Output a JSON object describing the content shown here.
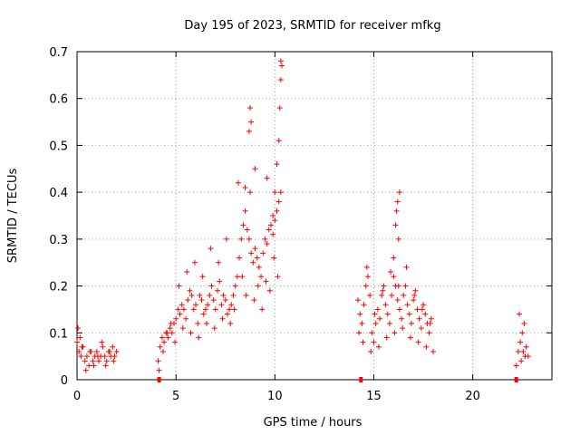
{
  "chart_data": {
    "type": "scatter",
    "title": "Day 195 of 2023, SRMTID for receiver mfkg",
    "xlabel": "GPS time / hours",
    "ylabel": "SRMTID / TECUs",
    "xlim": [
      0,
      24
    ],
    "ylim": [
      0,
      0.7
    ],
    "x_ticks": [
      0,
      5,
      10,
      15,
      20
    ],
    "x_tick_labels": [
      "0",
      "5",
      "10",
      "15",
      "20"
    ],
    "y_ticks": [
      0,
      0.1,
      0.2,
      0.3,
      0.4,
      0.5,
      0.6,
      0.7
    ],
    "y_tick_labels": [
      "0",
      "0.1",
      "0.2",
      "0.3",
      "0.4",
      "0.5",
      "0.6",
      "0.7"
    ],
    "grid": true,
    "marker": "+",
    "color": "#ff0000",
    "series": [
      {
        "name": "SRMTID",
        "x": [
          0.0,
          0.1,
          0.2,
          0.3,
          0.4,
          0.5,
          0.6,
          0.7,
          0.8,
          0.9,
          1.0,
          1.1,
          1.2,
          1.3,
          1.4,
          1.5,
          1.6,
          1.7,
          1.8,
          1.9,
          2.0,
          0.05,
          0.15,
          0.25,
          0.45,
          0.65,
          0.85,
          1.05,
          1.25,
          1.45,
          1.65,
          1.85,
          4.1,
          4.2,
          4.3,
          4.4,
          4.5,
          4.6,
          4.7,
          4.8,
          4.9,
          5.0,
          5.1,
          5.2,
          5.3,
          5.4,
          5.5,
          5.6,
          5.7,
          5.8,
          5.9,
          6.0,
          6.1,
          6.2,
          6.3,
          6.4,
          6.5,
          6.6,
          6.7,
          6.8,
          6.9,
          7.0,
          7.1,
          7.2,
          7.3,
          7.4,
          7.5,
          7.6,
          7.7,
          7.8,
          7.9,
          8.0,
          8.1,
          8.2,
          8.3,
          8.4,
          8.5,
          8.6,
          8.7,
          8.8,
          8.9,
          9.0,
          9.1,
          9.2,
          9.3,
          9.4,
          9.5,
          9.6,
          9.7,
          9.8,
          9.9,
          10.0,
          10.1,
          10.2,
          10.3,
          4.15,
          4.35,
          4.55,
          4.75,
          4.95,
          5.15,
          5.35,
          5.55,
          5.75,
          5.95,
          6.15,
          6.35,
          6.55,
          6.75,
          6.95,
          7.15,
          7.35,
          7.55,
          7.75,
          7.95,
          8.15,
          8.35,
          8.55,
          8.75,
          8.95,
          9.15,
          9.35,
          9.55,
          9.75,
          9.95,
          10.15,
          8.5,
          8.7,
          8.75,
          8.8,
          9.0,
          9.6,
          9.9,
          10.0,
          10.1,
          10.2,
          10.25,
          10.3,
          10.3,
          10.35,
          14.2,
          14.3,
          14.4,
          14.5,
          14.6,
          14.7,
          14.8,
          14.9,
          15.0,
          15.1,
          15.2,
          15.3,
          15.4,
          15.5,
          15.6,
          15.7,
          15.8,
          15.9,
          16.0,
          16.1,
          16.2,
          16.3,
          16.4,
          16.5,
          16.6,
          16.7,
          16.8,
          16.9,
          17.0,
          17.1,
          17.2,
          17.3,
          17.4,
          17.5,
          17.6,
          17.7,
          17.8,
          17.9,
          18.0,
          14.25,
          14.45,
          14.65,
          14.85,
          15.05,
          15.25,
          15.45,
          15.65,
          15.85,
          16.05,
          16.25,
          16.45,
          16.65,
          16.85,
          17.05,
          17.25,
          17.45,
          17.65,
          17.85,
          16.0,
          16.1,
          16.2,
          16.3,
          16.15,
          16.25,
          22.2,
          22.3,
          22.4,
          22.5,
          22.6,
          22.7,
          22.8,
          22.35,
          22.45,
          22.55,
          22.65
        ],
        "y": [
          0.08,
          0.06,
          0.05,
          0.07,
          0.04,
          0.05,
          0.03,
          0.06,
          0.04,
          0.05,
          0.06,
          0.04,
          0.05,
          0.07,
          0.05,
          0.04,
          0.06,
          0.05,
          0.07,
          0.05,
          0.06,
          0.11,
          0.09,
          0.07,
          0.02,
          0.06,
          0.03,
          0.05,
          0.08,
          0.03,
          0.06,
          0.04,
          0.04,
          0.07,
          0.09,
          0.08,
          0.1,
          0.09,
          0.11,
          0.1,
          0.12,
          0.13,
          0.15,
          0.14,
          0.16,
          0.15,
          0.13,
          0.17,
          0.19,
          0.18,
          0.15,
          0.16,
          0.12,
          0.18,
          0.17,
          0.14,
          0.15,
          0.16,
          0.18,
          0.2,
          0.17,
          0.15,
          0.19,
          0.21,
          0.16,
          0.18,
          0.17,
          0.14,
          0.15,
          0.16,
          0.18,
          0.2,
          0.22,
          0.26,
          0.3,
          0.33,
          0.36,
          0.32,
          0.3,
          0.27,
          0.25,
          0.28,
          0.26,
          0.24,
          0.22,
          0.27,
          0.3,
          0.29,
          0.32,
          0.33,
          0.31,
          0.34,
          0.36,
          0.38,
          0.4,
          0.02,
          0.06,
          0.1,
          0.12,
          0.08,
          0.2,
          0.11,
          0.23,
          0.1,
          0.25,
          0.09,
          0.22,
          0.12,
          0.28,
          0.11,
          0.25,
          0.13,
          0.3,
          0.12,
          0.15,
          0.42,
          0.22,
          0.18,
          0.4,
          0.17,
          0.2,
          0.15,
          0.21,
          0.19,
          0.26,
          0.22,
          0.41,
          0.53,
          0.58,
          0.55,
          0.45,
          0.43,
          0.35,
          0.4,
          0.46,
          0.51,
          0.58,
          0.64,
          0.68,
          0.67,
          0.17,
          0.14,
          0.12,
          0.16,
          0.2,
          0.22,
          0.18,
          0.1,
          0.08,
          0.12,
          0.15,
          0.13,
          0.18,
          0.2,
          0.16,
          0.14,
          0.12,
          0.18,
          0.22,
          0.2,
          0.17,
          0.15,
          0.13,
          0.18,
          0.2,
          0.16,
          0.14,
          0.12,
          0.17,
          0.19,
          0.15,
          0.13,
          0.11,
          0.16,
          0.14,
          0.12,
          0.1,
          0.13,
          0.06,
          0.1,
          0.08,
          0.24,
          0.06,
          0.14,
          0.07,
          0.19,
          0.09,
          0.23,
          0.1,
          0.2,
          0.11,
          0.24,
          0.09,
          0.18,
          0.08,
          0.15,
          0.07,
          0.12,
          0.26,
          0.33,
          0.38,
          0.4,
          0.36,
          0.3,
          0.03,
          0.06,
          0.08,
          0.1,
          0.12,
          0.07,
          0.05,
          0.14,
          0.04,
          0.06,
          0.05
        ]
      }
    ],
    "gap_markers": [
      4.15,
      14.35,
      22.2
    ]
  }
}
